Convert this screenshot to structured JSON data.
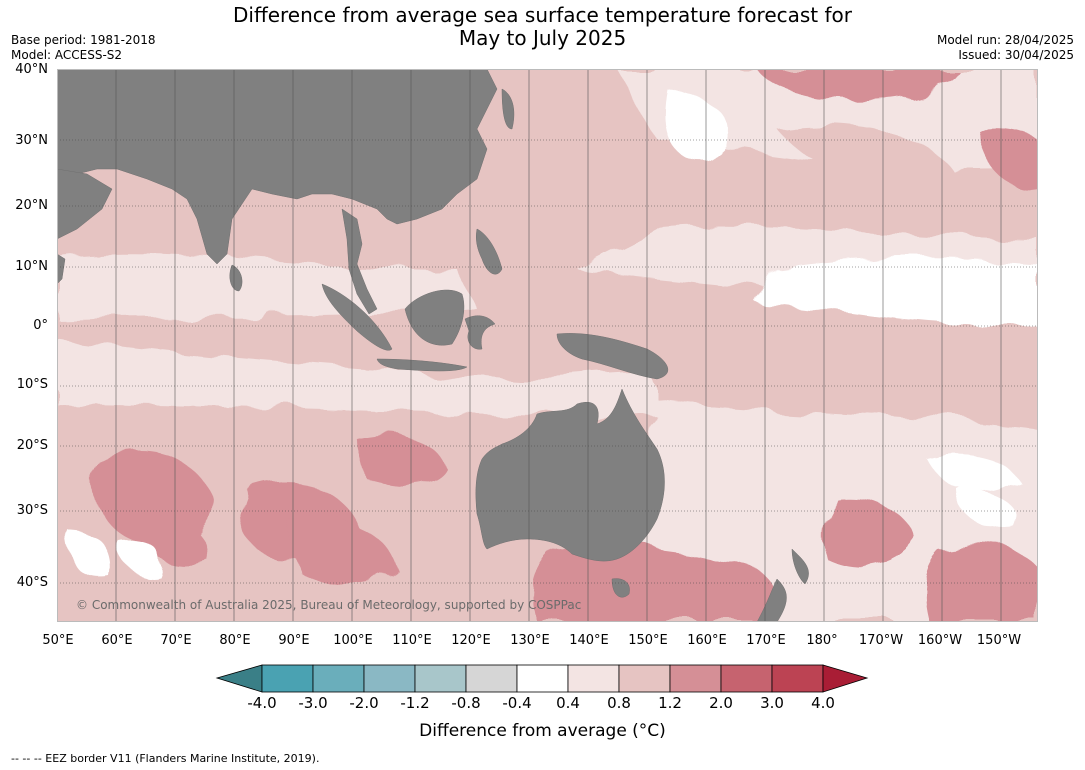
{
  "title": {
    "line1": "Difference from average sea surface temperature forecast for",
    "line2": "May to July 2025"
  },
  "meta": {
    "base_period": "Base period: 1981-2018",
    "model": "Model: ACCESS-S2",
    "model_run": "Model run: 28/04/2025",
    "issued": "Issued: 30/04/2025"
  },
  "map": {
    "latitude_labels": [
      "40°N",
      "30°N",
      "20°N",
      "10°N",
      "0°",
      "10°S",
      "20°S",
      "30°S",
      "40°S"
    ],
    "longitude_labels": [
      "50°E",
      "60°E",
      "70°E",
      "80°E",
      "90°E",
      "100°E",
      "110°E",
      "120°E",
      "130°E",
      "140°E",
      "150°E",
      "160°E",
      "170°E",
      "180°",
      "170°W",
      "160°W",
      "150°W"
    ],
    "land_color": "#808080",
    "copyright": "© Commonwealth of Australia 2025, Bureau of Meteorology, supported by COSPPac"
  },
  "legend": {
    "ticks": [
      "-4.0",
      "-3.0",
      "-2.0",
      "-1.2",
      "-0.8",
      "-0.4",
      "0.4",
      "0.8",
      "1.2",
      "2.0",
      "3.0",
      "4.0"
    ],
    "colors": [
      "#3a7f87",
      "#4aa2b2",
      "#6aaebb",
      "#8ab8c4",
      "#a8c6ca",
      "#d6d6d6",
      "#ffffff",
      "#f3e4e3",
      "#e6c4c2",
      "#d58f96",
      "#c6636f",
      "#bc4353",
      "#a91d35"
    ],
    "label": "Difference from average (°C)"
  },
  "footer": {
    "eez_note": "--  --  -- EEZ border V11 (Flanders Marine Institute, 2019)."
  }
}
